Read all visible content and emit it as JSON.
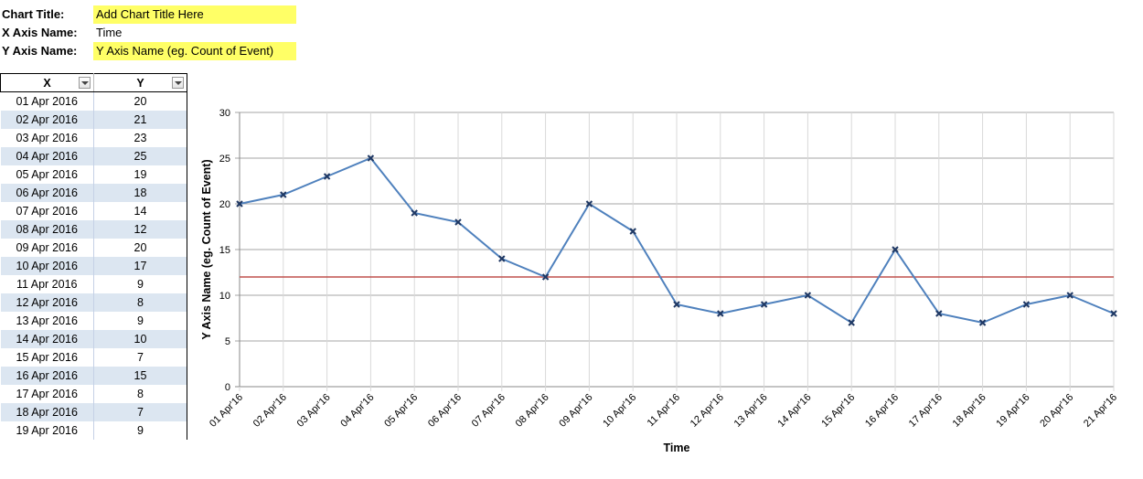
{
  "config": {
    "chart_title_label": "Chart Title:",
    "chart_title_value": "Add Chart Title Here",
    "x_axis_label": "X Axis Name:",
    "x_axis_value": "Time",
    "y_axis_label": "Y Axis Name:",
    "y_axis_value": "Y Axis Name (eg. Count of Event)"
  },
  "table": {
    "headers": [
      "X",
      "Y"
    ],
    "rows": [
      [
        "01 Apr 2016",
        "20"
      ],
      [
        "02 Apr 2016",
        "21"
      ],
      [
        "03 Apr 2016",
        "23"
      ],
      [
        "04 Apr 2016",
        "25"
      ],
      [
        "05 Apr 2016",
        "19"
      ],
      [
        "06 Apr 2016",
        "18"
      ],
      [
        "07 Apr 2016",
        "14"
      ],
      [
        "08 Apr 2016",
        "12"
      ],
      [
        "09 Apr 2016",
        "20"
      ],
      [
        "10 Apr 2016",
        "17"
      ],
      [
        "11 Apr 2016",
        "9"
      ],
      [
        "12 Apr 2016",
        "8"
      ],
      [
        "13 Apr 2016",
        "9"
      ],
      [
        "14 Apr 2016",
        "10"
      ],
      [
        "15 Apr 2016",
        "7"
      ],
      [
        "16 Apr 2016",
        "15"
      ],
      [
        "17 Apr 2016",
        "8"
      ],
      [
        "18 Apr 2016",
        "7"
      ],
      [
        "19 Apr 2016",
        "9"
      ]
    ]
  },
  "chart_data": {
    "type": "line",
    "title": "",
    "xlabel": "Time",
    "ylabel": "Y Axis Name (eg. Count of Event)",
    "ylim": [
      0,
      30
    ],
    "yticks": [
      0,
      5,
      10,
      15,
      20,
      25,
      30
    ],
    "grid": true,
    "categories": [
      "01 Apr'16",
      "02 Apr'16",
      "03 Apr'16",
      "04 Apr'16",
      "05 Apr'16",
      "06 Apr'16",
      "07 Apr'16",
      "08 Apr'16",
      "09 Apr'16",
      "10 Apr'16",
      "11 Apr'16",
      "12 Apr'16",
      "13 Apr'16",
      "14 Apr'16",
      "15 Apr'16",
      "16 Apr'16",
      "17 Apr'16",
      "18 Apr'16",
      "19 Apr'16",
      "20 Apr'16",
      "21 Apr'16"
    ],
    "series": [
      {
        "values": [
          20,
          21,
          23,
          25,
          19,
          18,
          14,
          12,
          20,
          17,
          9,
          8,
          9,
          10,
          7,
          15,
          8,
          7,
          9,
          10,
          8
        ],
        "color": "#4f81bd",
        "marker": "x"
      }
    ],
    "reference_line": {
      "value": 12,
      "color": "#c0504d"
    }
  }
}
